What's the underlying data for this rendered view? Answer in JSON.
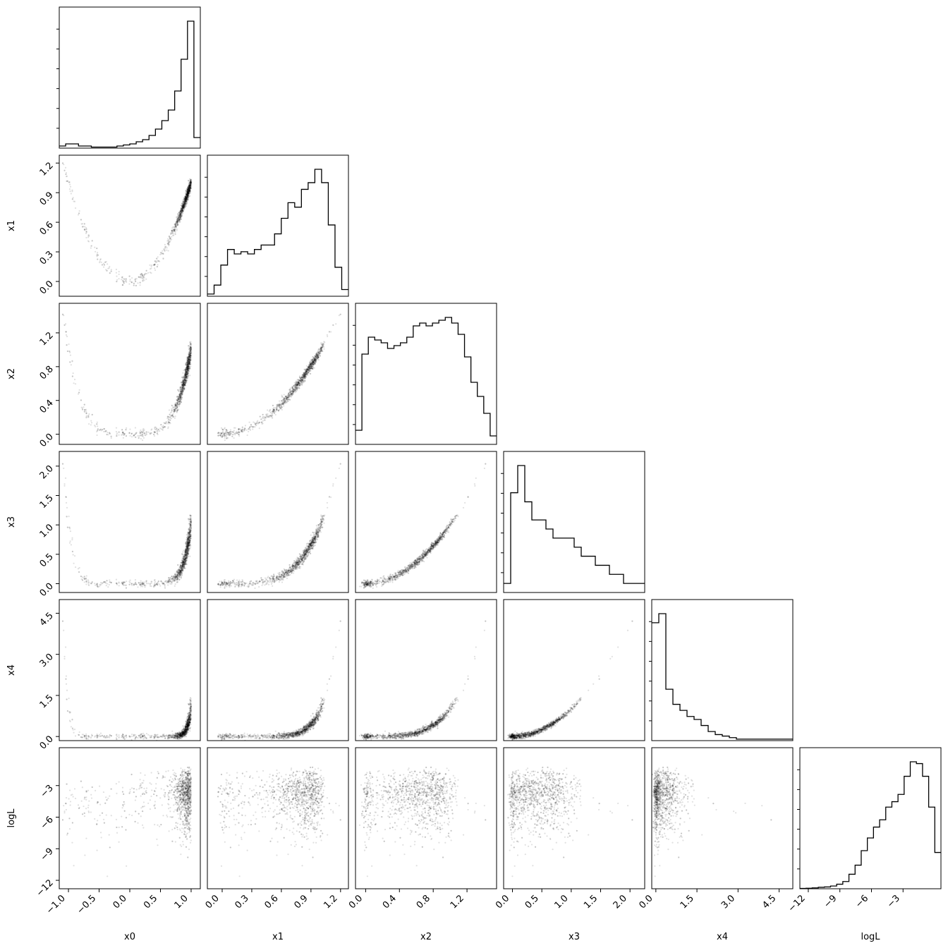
{
  "chart_data": {
    "type": "corner",
    "parameters": [
      "x0",
      "x1",
      "x2",
      "x3",
      "x4",
      "logL"
    ],
    "axis_labels": {
      "bottom": [
        "x0",
        "x1",
        "x2",
        "x3",
        "x4",
        "logL"
      ],
      "left": [
        "x1",
        "x2",
        "x3",
        "x4",
        "logL"
      ]
    },
    "ranges": {
      "x0": [
        -1.15,
        1.15
      ],
      "x1": [
        -0.15,
        1.28
      ],
      "x2": [
        -0.12,
        1.55
      ],
      "x3": [
        -0.15,
        2.25
      ],
      "x4": [
        -0.15,
        5.0
      ],
      "logL": [
        -12.8,
        0.6
      ]
    },
    "ticks": {
      "x0": [
        -1.0,
        -0.5,
        0.0,
        0.5,
        1.0
      ],
      "x1": [
        0.0,
        0.3,
        0.6,
        0.9,
        1.2
      ],
      "x2": [
        0.0,
        0.4,
        0.8,
        1.2
      ],
      "x3": [
        0.0,
        0.5,
        1.0,
        1.5,
        2.0
      ],
      "x4": [
        0.0,
        1.5,
        3.0,
        4.5
      ],
      "logL": [
        -12,
        -9,
        -6,
        -3
      ]
    },
    "tick_labels": {
      "x0": [
        "−1.0",
        "−0.5",
        "0.0",
        "0.5",
        "1.0"
      ],
      "x1": [
        "0.0",
        "0.3",
        "0.6",
        "0.9",
        "1.2"
      ],
      "x2": [
        "0.0",
        "0.4",
        "0.8",
        "1.2"
      ],
      "x3": [
        "0.0",
        "0.5",
        "1.0",
        "1.5",
        "2.0"
      ],
      "x4": [
        "0.0",
        "1.5",
        "3.0",
        "4.5"
      ],
      "logL": [
        "−12",
        "−9",
        "−6",
        "−3"
      ]
    },
    "histograms": {
      "x0": [
        1,
        2,
        2,
        1,
        1,
        0.5,
        0.5,
        0.5,
        0.5,
        1,
        1.5,
        2,
        3,
        4,
        6,
        9,
        13,
        18,
        27,
        42,
        60,
        5
      ],
      "x1": [
        1,
        5,
        14,
        21,
        19,
        20,
        19,
        21,
        23,
        23,
        28,
        35,
        42,
        40,
        48,
        51,
        57,
        51,
        32,
        13,
        3
      ],
      "x2": [
        5,
        32,
        38,
        37,
        36,
        34,
        35,
        36,
        38,
        42,
        43,
        42,
        43,
        44,
        45,
        43,
        39,
        31,
        22,
        17,
        11,
        3
      ],
      "x3": [
        1,
        11,
        14,
        10,
        8,
        8,
        7,
        6,
        6,
        6,
        5,
        4,
        4,
        3,
        3,
        2,
        2,
        1,
        1,
        1
      ],
      "x4": [
        39,
        42,
        17,
        12,
        10,
        8,
        7,
        5,
        3,
        2,
        1.5,
        1,
        0.5,
        0.5,
        0.5,
        0.5,
        0.5,
        0.5,
        0.5,
        0.5
      ],
      "logL": [
        0.2,
        0.3,
        0.5,
        0.8,
        1,
        1.5,
        2.5,
        4,
        8,
        13,
        21,
        28,
        34,
        38,
        45,
        48,
        52,
        62,
        70,
        69,
        62,
        45,
        20
      ]
    },
    "grid": false,
    "legend": "none"
  }
}
